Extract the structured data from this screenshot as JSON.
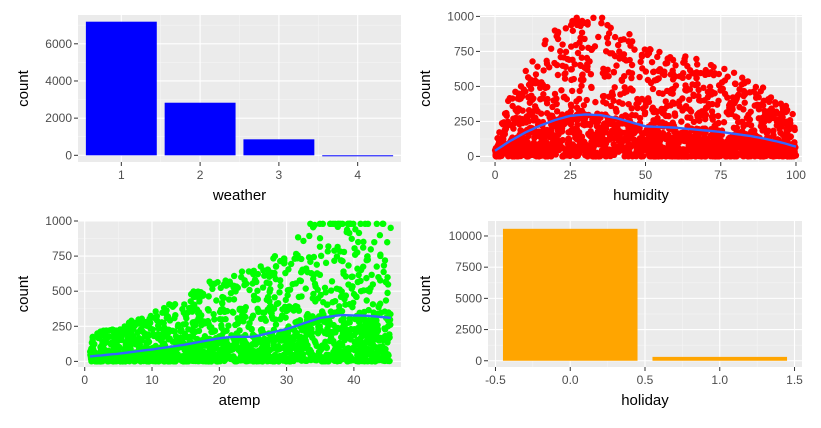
{
  "chart_data": [
    {
      "type": "bar",
      "xlabel": "weather",
      "ylabel": "count",
      "categories": [
        "1",
        "2",
        "3",
        "4"
      ],
      "values": [
        7190,
        2830,
        860,
        1
      ],
      "xlim": [
        0.45,
        4.55
      ],
      "ylim": [
        -360,
        7550
      ],
      "xticks": [
        "1",
        "2",
        "3",
        "4"
      ],
      "yticks": [
        "0",
        "2000",
        "4000",
        "6000"
      ],
      "ytick_values": [
        0,
        2000,
        4000,
        6000
      ],
      "bar_color": "#0000FF",
      "grid": true
    },
    {
      "type": "scatter",
      "xlabel": "humidity",
      "ylabel": "count",
      "xlim": [
        -5,
        102
      ],
      "ylim": [
        -40,
        1010
      ],
      "xticks": [
        "0",
        "25",
        "50",
        "75",
        "100"
      ],
      "xtick_values": [
        0,
        25,
        50,
        75,
        100
      ],
      "yticks": [
        "0",
        "250",
        "500",
        "750",
        "1000"
      ],
      "ytick_values": [
        0,
        250,
        500,
        750,
        1000
      ],
      "point_color": "#FF0000",
      "smooth_color": "#3366FF",
      "smooth": {
        "x": [
          0,
          5,
          10,
          15,
          20,
          25,
          30,
          35,
          40,
          45,
          50,
          55,
          60,
          65,
          70,
          75,
          80,
          85,
          90,
          95,
          100
        ],
        "y": [
          40,
          110,
          170,
          220,
          260,
          290,
          300,
          295,
          275,
          245,
          215,
          210,
          205,
          195,
          185,
          175,
          160,
          145,
          125,
          100,
          70
        ]
      },
      "grid": true
    },
    {
      "type": "scatter",
      "xlabel": "atemp",
      "ylabel": "count",
      "xlim": [
        -1,
        47
      ],
      "ylim": [
        -40,
        1000
      ],
      "xticks": [
        "0",
        "10",
        "20",
        "30",
        "40"
      ],
      "xtick_values": [
        0,
        10,
        20,
        30,
        40
      ],
      "yticks": [
        "0",
        "250",
        "500",
        "750",
        "1000"
      ],
      "ytick_values": [
        0,
        250,
        500,
        750,
        1000
      ],
      "point_color": "#00FF00",
      "smooth_color": "#3366FF",
      "smooth": {
        "x": [
          0.8,
          5,
          10,
          15,
          20,
          22,
          25,
          30,
          35,
          38,
          42,
          45.5
        ],
        "y": [
          35,
          55,
          85,
          120,
          165,
          175,
          175,
          230,
          310,
          330,
          325,
          310
        ]
      },
      "grid": true
    },
    {
      "type": "bar",
      "xlabel": "holiday",
      "ylabel": "count",
      "categories": [
        "0",
        "1"
      ],
      "x": [
        0,
        1
      ],
      "values": [
        10575,
        311
      ],
      "xlim": [
        -0.55,
        1.55
      ],
      "ylim": [
        -500,
        11200
      ],
      "xticks": [
        "-0.5",
        "0.0",
        "0.5",
        "1.0",
        "1.5"
      ],
      "xtick_values": [
        -0.5,
        0,
        0.5,
        1,
        1.5
      ],
      "yticks": [
        "0",
        "2500",
        "5000",
        "7500",
        "10000"
      ],
      "ytick_values": [
        0,
        2500,
        5000,
        7500,
        10000
      ],
      "bar_color": "#FFA500",
      "grid": true
    }
  ]
}
